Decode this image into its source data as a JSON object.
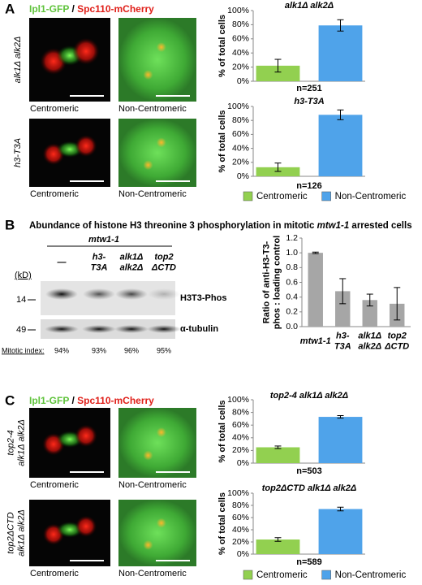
{
  "figure": {
    "panel_labels": [
      "A",
      "B",
      "C"
    ],
    "panel_a": {
      "header": {
        "green": "Ipl1-GFP",
        "slash": " / ",
        "red": "Spc110-mCherry"
      },
      "rows": [
        {
          "label": "alk1Δ alk2Δ",
          "captions": [
            "Centromeric",
            "Non-Centromeric"
          ]
        },
        {
          "label": "h3-T3A",
          "captions": [
            "Centromeric",
            "Non-Centromeric"
          ]
        }
      ]
    },
    "panel_b": {
      "title": [
        "Abundance of histone H3 threonine 3 phosphorylation in mitotic ",
        "mtw1-1",
        " arrested cells"
      ],
      "strain": "mtw1-1",
      "lanes": [
        "—",
        "h3-\nT3A",
        "alk1Δ\nalk2Δ",
        "top2\nΔCTD"
      ],
      "kd_label": "(kD)",
      "markers": [
        "14",
        "49"
      ],
      "bands": [
        "H3T3-Phos",
        "α-tubulin"
      ],
      "mitotic_index_label": "Mitotic index:",
      "mitotic_index": [
        "94%",
        "93%",
        "96%",
        "95%"
      ]
    },
    "panel_c": {
      "header": {
        "green": "Ipl1-GFP",
        "slash": " / ",
        "red": "Spc110-mCherry"
      },
      "rows": [
        {
          "label": "top2-4\nalk1Δ alk2Δ",
          "captions": [
            "Centromeric",
            "Non-Centromeric"
          ]
        },
        {
          "label": "top2ΔCTD\nalk1Δ alk2Δ",
          "captions": [
            "Centromeric",
            "Non-Centromeric"
          ]
        }
      ]
    }
  },
  "chart_data": [
    {
      "type": "bar",
      "title": "alk1Δ alk2Δ",
      "y_label": "% of total cells",
      "annotation": "n=251",
      "series": [
        {
          "color": "#92d050",
          "values": [
            22
          ],
          "errors": [
            9
          ]
        },
        {
          "color": "#4fa3ea",
          "values": [
            79
          ],
          "errors": [
            8
          ]
        }
      ],
      "ylim": [
        0,
        100
      ],
      "yticks": [
        {
          "value": 0,
          "label": "0%"
        },
        {
          "value": 20,
          "label": "20%"
        },
        {
          "value": 40,
          "label": "40%"
        },
        {
          "value": 60,
          "label": "60%"
        },
        {
          "value": 80,
          "label": "80%"
        },
        {
          "value": 100,
          "label": "100%"
        }
      ],
      "grid": false
    },
    {
      "type": "bar",
      "title": "h3-T3A",
      "y_label": "% of total cells",
      "annotation": "n=126",
      "series": [
        {
          "name": "Centromeric",
          "color": "#92d050",
          "values": [
            13
          ],
          "errors": [
            6
          ]
        },
        {
          "name": "Non-Centromeric",
          "color": "#4fa3ea",
          "values": [
            88
          ],
          "errors": [
            7
          ]
        }
      ],
      "ylim": [
        0,
        100
      ],
      "yticks": [
        {
          "value": 0,
          "label": "0%"
        },
        {
          "value": 20,
          "label": "20%"
        },
        {
          "value": 40,
          "label": "40%"
        },
        {
          "value": 60,
          "label": "60%"
        },
        {
          "value": 80,
          "label": "80%"
        },
        {
          "value": 100,
          "label": "100%"
        }
      ],
      "grid": false
    },
    {
      "type": "bar",
      "title": "top2-4 alk1Δ alk2Δ",
      "y_label": "% of total cells",
      "annotation": "n=503",
      "series": [
        {
          "color": "#92d050",
          "values": [
            25
          ],
          "errors": [
            2
          ]
        },
        {
          "color": "#4fa3ea",
          "values": [
            73
          ],
          "errors": [
            2
          ]
        }
      ],
      "ylim": [
        0,
        100
      ],
      "yticks": [
        {
          "value": 0,
          "label": "0%"
        },
        {
          "value": 20,
          "label": "20%"
        },
        {
          "value": 40,
          "label": "40%"
        },
        {
          "value": 60,
          "label": "60%"
        },
        {
          "value": 80,
          "label": "80%"
        },
        {
          "value": 100,
          "label": "100%"
        }
      ],
      "grid": false
    },
    {
      "type": "bar",
      "title": "top2ΔCTD alk1Δ alk2Δ",
      "y_label": "% of total cells",
      "annotation": "n=589",
      "series": [
        {
          "name": "Centromeric",
          "color": "#92d050",
          "values": [
            24
          ],
          "errors": [
            3
          ]
        },
        {
          "name": "Non-Centromeric",
          "color": "#4fa3ea",
          "values": [
            74
          ],
          "errors": [
            3
          ]
        }
      ],
      "ylim": [
        0,
        100
      ],
      "yticks": [
        {
          "value": 0,
          "label": "0%"
        },
        {
          "value": 20,
          "label": "20%"
        },
        {
          "value": 40,
          "label": "40%"
        },
        {
          "value": 60,
          "label": "60%"
        },
        {
          "value": 80,
          "label": "80%"
        },
        {
          "value": 100,
          "label": "100%"
        }
      ],
      "grid": false
    },
    {
      "type": "bar",
      "y_label": "Ratio of anti-H3-T3-\nphos : loading control",
      "color": "#a6a6a6",
      "categories": [
        "mtw1-1",
        "h3-\nT3A",
        "alk1Δ\nalk2Δ",
        "top2\nΔCTD"
      ],
      "values": [
        1.0,
        0.48,
        0.36,
        0.31
      ],
      "errors": [
        0.01,
        0.17,
        0.08,
        0.22
      ],
      "ylim": [
        0,
        1.2
      ],
      "yticks": [
        {
          "value": 0,
          "label": "0.0"
        },
        0.2,
        0.4,
        0.6,
        0.8,
        {
          "value": 1,
          "label": "1.0"
        },
        1.2
      ],
      "grid": false
    }
  ]
}
